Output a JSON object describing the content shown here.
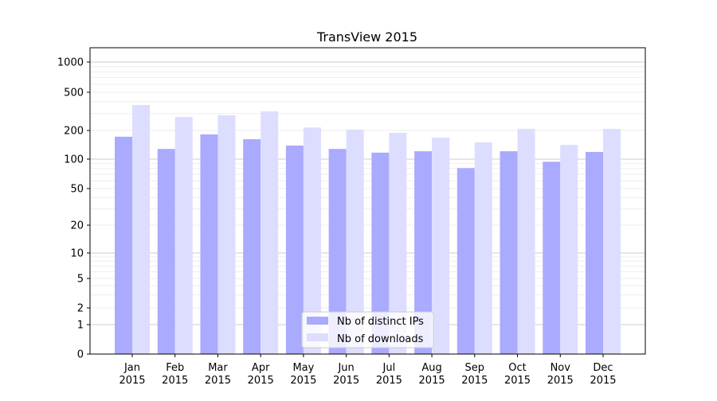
{
  "chart_data": {
    "type": "bar",
    "title": "TransView 2015",
    "xlabel": "",
    "ylabel": "",
    "yscale": "symlog",
    "ylim": [
      0,
      1300
    ],
    "yticks": [
      0,
      1,
      2,
      5,
      10,
      20,
      50,
      100,
      200,
      500,
      1000
    ],
    "ytick_labels": [
      "0",
      "1",
      "2",
      "5",
      "10",
      "20",
      "50",
      "100",
      "200",
      "500",
      "1000"
    ],
    "categories": [
      "Jan\n2015",
      "Feb\n2015",
      "Mar\n2015",
      "Apr\n2015",
      "May\n2015",
      "Jun\n2015",
      "Jul\n2015",
      "Aug\n2015",
      "Sep\n2015",
      "Oct\n2015",
      "Nov\n2015",
      "Dec\n2015"
    ],
    "series": [
      {
        "name": "Nb of distinct IPs",
        "color": "#aaaaff",
        "values": [
          172,
          128,
          182,
          162,
          139,
          128,
          117,
          121,
          81,
          121,
          94,
          119
        ]
      },
      {
        "name": "Nb of downloads",
        "color": "#ddddff",
        "values": [
          368,
          276,
          288,
          316,
          215,
          204,
          189,
          168,
          150,
          208,
          141,
          208
        ]
      }
    ],
    "legend_position": "lower-center",
    "grid": true
  }
}
